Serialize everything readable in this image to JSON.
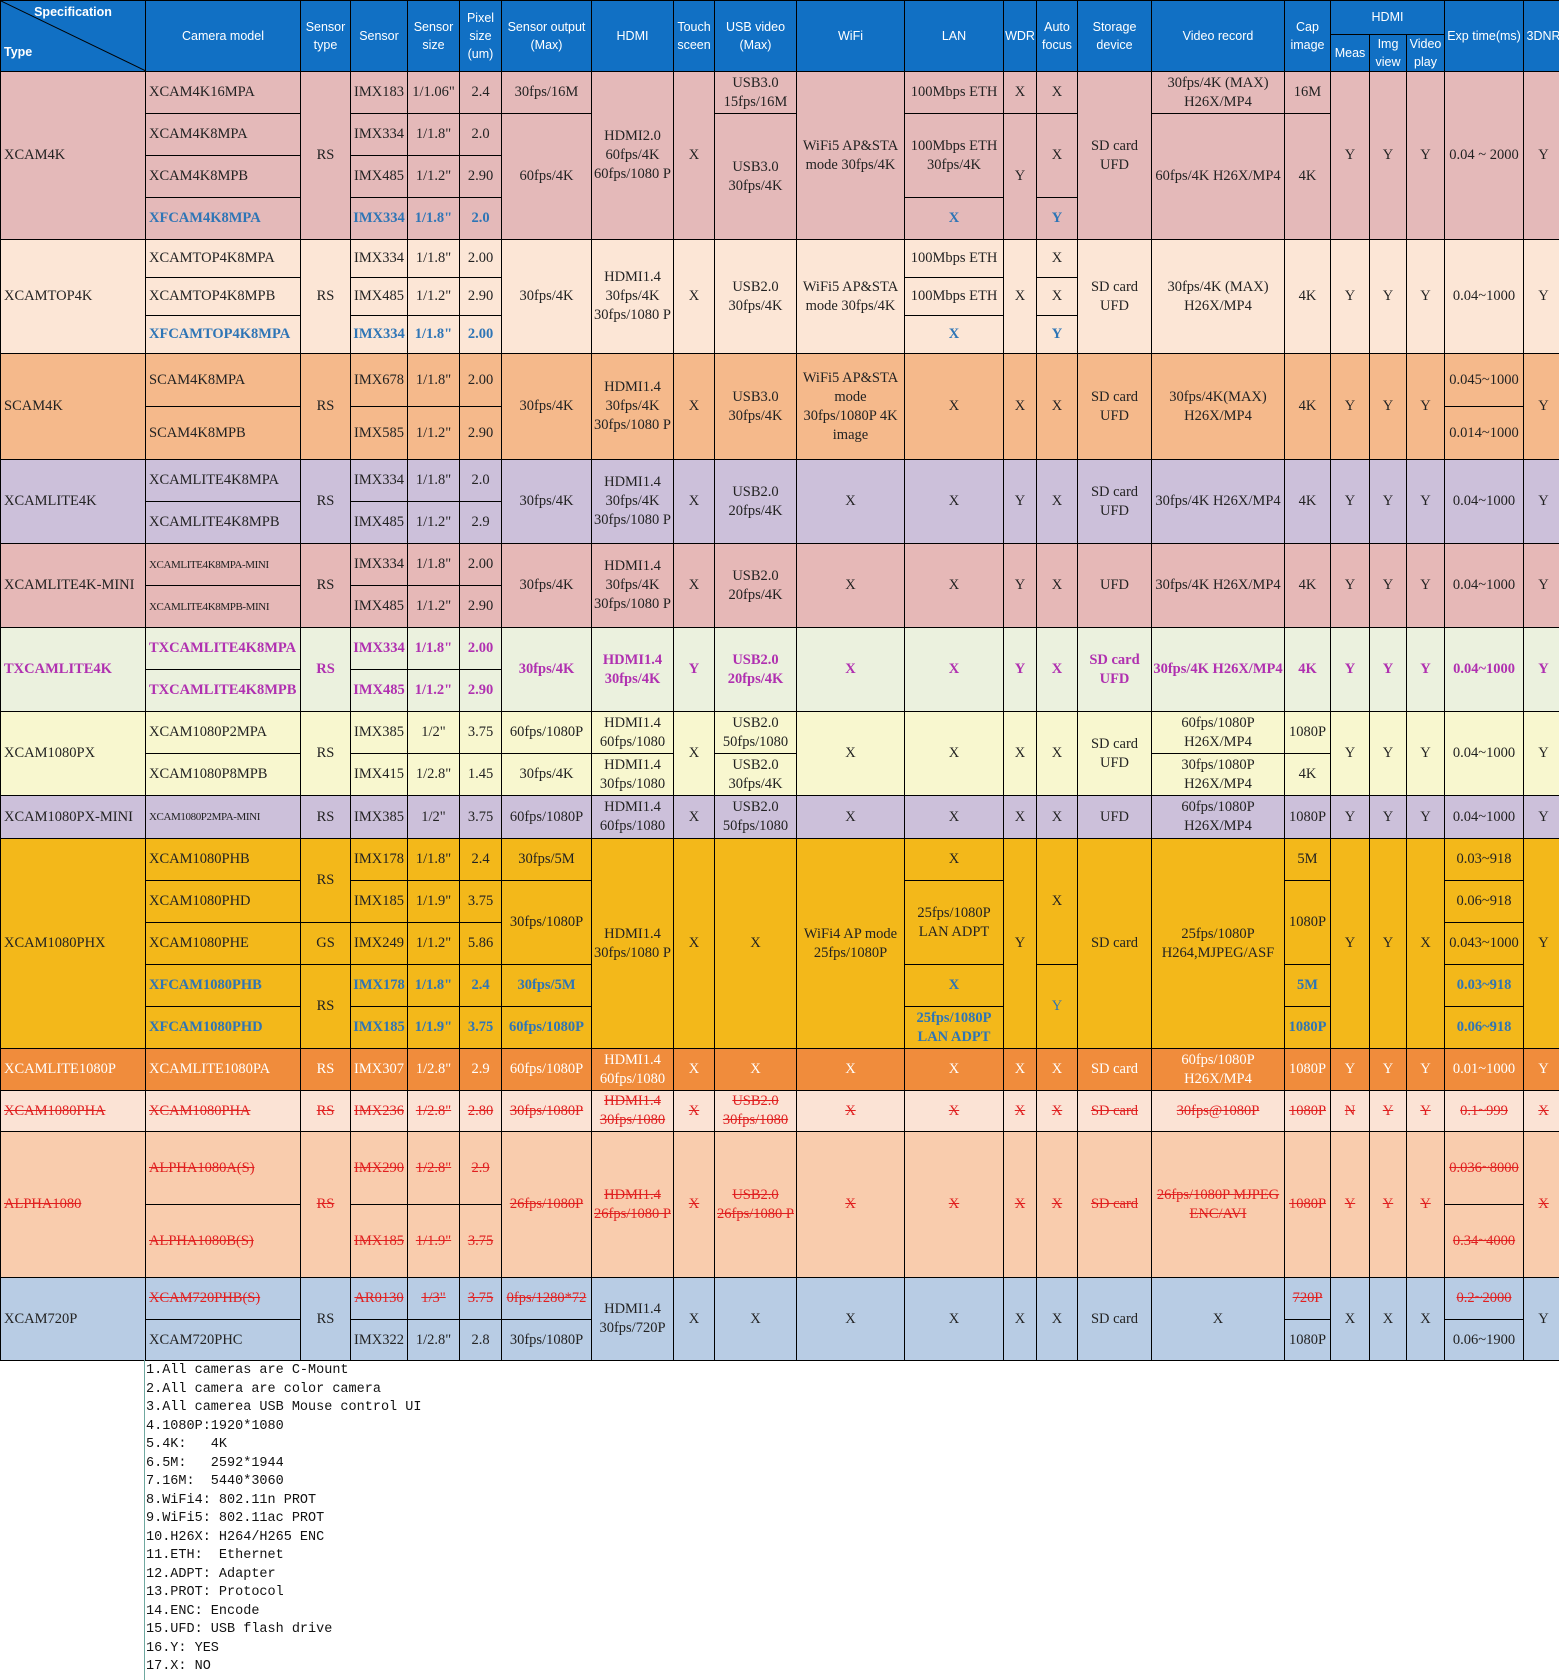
{
  "headers": {
    "specification": "Specification",
    "type": "Type",
    "camera_model": "Camera model",
    "sensor_type": "Sensor type",
    "sensor": "Sensor",
    "sensor_size": "Sensor size",
    "pixel_size": "Pixel size (um)",
    "sensor_output": "Sensor output (Max)",
    "hdmi": "HDMI",
    "touch_screen": "Touch sceen",
    "usb_video": "USB video (Max)",
    "wifi": "WiFi",
    "lan": "LAN",
    "wdr": "WDR",
    "auto_focus": "Auto focus",
    "storage_device": "Storage device",
    "video_record": "Video record",
    "cap_image": "Cap image",
    "hdmi_group": "HDMI",
    "meas": "Meas",
    "img_view": "Img view",
    "video_play": "Video play",
    "exp_time": "Exp time(ms)",
    "dnr": "3DNR"
  },
  "rows": {
    "xcam4k": {
      "type": "XCAM4K",
      "m1": "XCAM4K16MPA",
      "m2": "XCAM4K8MPA",
      "m3": "XCAM4K8MPB",
      "m4": "XFCAM4K8MPA",
      "sensor_type": "RS",
      "s1": "IMX183",
      "s2": "IMX334",
      "s3": "IMX485",
      "s4": "IMX334",
      "z1": "1/1.06\"",
      "z2": "1/1.8\"",
      "z3": "1/1.2\"",
      "z4": "1/1.8\"",
      "p1": "2.4",
      "p2": "2.0",
      "p3": "2.90",
      "p4": "2.0",
      "o1": "30fps/16M",
      "o2": "60fps/4K",
      "hdmi": "HDMI2.0 60fps/4K 60fps/1080 P",
      "touch": "X",
      "u1": "USB3.0 15fps/16M",
      "u2": "USB3.0 30fps/4K",
      "wifi": "WiFi5 AP&STA mode 30fps/4K",
      "l1": "100Mbps ETH",
      "l2": "100Mbps ETH 30fps/4K",
      "l3": "X",
      "w1": "X",
      "w2": "Y",
      "a1": "X",
      "a2": "X",
      "a3": "Y",
      "storage": "SD card UFD",
      "v1": "30fps/4K (MAX) H26X/MP4",
      "v2": "60fps/4K H26X/MP4",
      "c1": "16M",
      "c2": "4K",
      "meas": "Y",
      "img": "Y",
      "play": "Y",
      "exp": "0.04 ~ 2000",
      "dnr": "Y"
    },
    "xcamtop4k": {
      "type": "XCAMTOP4K",
      "m1": "XCAMTOP4K8MPA",
      "m2": "XCAMTOP4K8MPB",
      "m3": "XFCAMTOP4K8MPA",
      "sensor_type": "RS",
      "s1": "IMX334",
      "s2": "IMX485",
      "s3": "IMX334",
      "z1": "1/1.8\"",
      "z2": "1/1.2\"",
      "z3": "1/1.8\"",
      "p1": "2.00",
      "p2": "2.90",
      "p3": "2.00",
      "out": "30fps/4K",
      "hdmi": "HDMI1.4 30fps/4K 30fps/1080 P",
      "touch": "X",
      "usb": "USB2.0 30fps/4K",
      "wifi": "WiFi5 AP&STA mode 30fps/4K",
      "l1": "100Mbps ETH",
      "l2": "100Mbps ETH",
      "l3": "X",
      "wdr": "X",
      "a1": "X",
      "a2": "X",
      "a3": "Y",
      "storage": "SD card UFD",
      "video": "30fps/4K (MAX) H26X/MP4",
      "cap": "4K",
      "meas": "Y",
      "img": "Y",
      "play": "Y",
      "exp": "0.04~1000",
      "dnr": "Y"
    },
    "scam4k": {
      "type": "SCAM4K",
      "m1": "SCAM4K8MPA",
      "m2": "SCAM4K8MPB",
      "sensor_type": "RS",
      "s1": "IMX678",
      "s2": "IMX585",
      "z1": "1/1.8\"",
      "z2": "1/1.2\"",
      "p1": "2.00",
      "p2": "2.90",
      "out": "30fps/4K",
      "hdmi": "HDMI1.4 30fps/4K 30fps/1080 P",
      "touch": "X",
      "usb": "USB3.0 30fps/4K",
      "wifi": "WiFi5 AP&STA mode 30fps/1080P 4K image",
      "lan": "X",
      "wdr": "X",
      "af": "X",
      "storage": "SD card UFD",
      "video": "30fps/4K(MAX) H26X/MP4",
      "cap": "4K",
      "meas": "Y",
      "img": "Y",
      "play": "Y",
      "e1": "0.045~1000",
      "e2": "0.014~1000",
      "dnr": "Y"
    },
    "xcamlite4k": {
      "type": "XCAMLITE4K",
      "m1": "XCAMLITE4K8MPA",
      "m2": "XCAMLITE4K8MPB",
      "sensor_type": "RS",
      "s1": "IMX334",
      "s2": "IMX485",
      "z1": "1/1.8\"",
      "z2": "1/1.2\"",
      "p1": "2.0",
      "p2": "2.9",
      "out": "30fps/4K",
      "hdmi": "HDMI1.4 30fps/4K 30fps/1080 P",
      "touch": "X",
      "usb": "USB2.0 20fps/4K",
      "wifi": "X",
      "lan": "X",
      "wdr": "Y",
      "af": "X",
      "storage": "SD card UFD",
      "video": "30fps/4K H26X/MP4",
      "cap": "4K",
      "meas": "Y",
      "img": "Y",
      "play": "Y",
      "exp": "0.04~1000",
      "dnr": "Y"
    },
    "xcamlite4kmini": {
      "type": "XCAMLITE4K-MINI",
      "m1": "XCAMLITE4K8MPA-MINI",
      "m2": "XCAMLITE4K8MPB-MINI",
      "sensor_type": "RS",
      "s1": "IMX334",
      "s2": "IMX485",
      "z1": "1/1.8\"",
      "z2": "1/1.2\"",
      "p1": "2.00",
      "p2": "2.90",
      "out": "30fps/4K",
      "hdmi": "HDMI1.4 30fps/4K 30fps/1080 P",
      "touch": "X",
      "usb": "USB2.0 20fps/4K",
      "wifi": "X",
      "lan": "X",
      "wdr": "Y",
      "af": "X",
      "storage": "UFD",
      "video": "30fps/4K H26X/MP4",
      "cap": "4K",
      "meas": "Y",
      "img": "Y",
      "play": "Y",
      "exp": "0.04~1000",
      "dnr": "Y"
    },
    "txcamlite4k": {
      "type": "TXCAMLITE4K",
      "m1": "TXCAMLITE4K8MPA",
      "m2": "TXCAMLITE4K8MPB",
      "sensor_type": "RS",
      "s1": "IMX334",
      "s2": "IMX485",
      "z1": "1/1.8\"",
      "z2": "1/1.2\"",
      "p1": "2.00",
      "p2": "2.90",
      "out": "30fps/4K",
      "hdmi": "HDMI1.4 30fps/4K",
      "touch": "Y",
      "usb": "USB2.0 20fps/4K",
      "wifi": "X",
      "lan": "X",
      "wdr": "Y",
      "af": "X",
      "storage": "SD card UFD",
      "video": "30fps/4K H26X/MP4",
      "cap": "4K",
      "meas": "Y",
      "img": "Y",
      "play": "Y",
      "exp": "0.04~1000",
      "dnr": "Y"
    },
    "xcam1080px": {
      "type": "XCAM1080PX",
      "m1": "XCAM1080P2MPA",
      "m2": "XCAM1080P8MPB",
      "sensor_type": "RS",
      "s1": "IMX385",
      "s2": "IMX415",
      "z1": "1/2\"",
      "z2": "1/2.8\"",
      "p1": "3.75",
      "p2": "1.45",
      "o1": "60fps/1080P",
      "o2": "30fps/4K",
      "h1": "HDMI1.4 60fps/1080",
      "h2": "HDMI1.4 30fps/1080",
      "touch": "X",
      "u1": "USB2.0 50fps/1080",
      "u2": "USB2.0 30fps/4K",
      "wifi": "X",
      "lan": "X",
      "wdr": "X",
      "af": "X",
      "storage": "SD card UFD",
      "v1": "60fps/1080P H26X/MP4",
      "v2": "30fps/1080P H26X/MP4",
      "c1": "1080P",
      "c2": "4K",
      "meas": "Y",
      "img": "Y",
      "play": "Y",
      "exp": "0.04~1000",
      "dnr": "Y"
    },
    "xcam1080pxmini": {
      "type": "XCAM1080PX-MINI",
      "m1": "XCAM1080P2MPA-MINI",
      "sensor_type": "RS",
      "s1": "IMX385",
      "z1": "1/2\"",
      "p1": "3.75",
      "out": "60fps/1080P",
      "hdmi": "HDMI1.4 60fps/1080",
      "touch": "X",
      "usb": "USB2.0 50fps/1080",
      "wifi": "X",
      "lan": "X",
      "wdr": "X",
      "af": "X",
      "storage": "UFD",
      "video": "60fps/1080P H26X/MP4",
      "cap": "1080P",
      "meas": "Y",
      "img": "Y",
      "play": "Y",
      "exp": "0.04~1000",
      "dnr": "Y"
    },
    "xcam1080phx": {
      "type": "XCAM1080PHX",
      "m1": "XCAM1080PHB",
      "m2": "XCAM1080PHD",
      "m3": "XCAM1080PHE",
      "m4": "XFCAM1080PHB",
      "m5": "XFCAM1080PHD",
      "st1": "RS",
      "st2": "GS",
      "st3": "RS",
      "s1": "IMX178",
      "s2": "IMX185",
      "s3": "IMX249",
      "s4": "IMX178",
      "s5": "IMX185",
      "z1": "1/1.8\"",
      "z2": "1/1.9\"",
      "z3": "1/1.2\"",
      "z4": "1/1.8\"",
      "z5": "1/1.9\"",
      "p1": "2.4",
      "p2": "3.75",
      "p3": "5.86",
      "p4": "2.4",
      "p5": "3.75",
      "o1": "30fps/5M",
      "o2": "30fps/1080P",
      "o4": "30fps/5M",
      "o5": "60fps/1080P",
      "hdmi": "HDMI1.4 30fps/1080 P",
      "touch": "X",
      "usb": "X",
      "wifi": "WiFi4 AP mode 25fps/1080P",
      "l1": "X",
      "l2": "25fps/1080P LAN ADPT",
      "l4": "X",
      "l5": "25fps/1080P LAN ADPT",
      "wdr": "Y",
      "a1": "X",
      "a2": "Y",
      "storage": "SD card",
      "video": "25fps/1080P H264,MJPEG/ASF",
      "c1": "5M",
      "c2": "1080P",
      "c4": "5M",
      "c5": "1080P",
      "meas": "Y",
      "img": "Y",
      "play": "X",
      "e1": "0.03~918",
      "e2": "0.06~918",
      "e3": "0.043~1000",
      "e4": "0.03~918",
      "e5": "0.06~918",
      "dnr": "Y"
    },
    "xcamlite1080p": {
      "type": "XCAMLITE1080P",
      "m1": "XCAMLITE1080PA",
      "sensor_type": "RS",
      "s1": "IMX307",
      "z1": "1/2.8\"",
      "p1": "2.9",
      "out": "60fps/1080P",
      "hdmi": "HDMI1.4 60fps/1080",
      "touch": "X",
      "usb": "X",
      "wifi": "X",
      "lan": "X",
      "wdr": "X",
      "af": "X",
      "storage": "SD card",
      "video": "60fps/1080P H26X/MP4",
      "cap": "1080P",
      "meas": "Y",
      "img": "Y",
      "play": "Y",
      "exp": "0.01~1000",
      "dnr": "Y"
    },
    "xcam1080pha": {
      "type": "XCAM1080PHA",
      "m1": "XCAM1080PHA",
      "sensor_type": "RS",
      "s1": "IMX236",
      "z1": "1/2.8\"",
      "p1": "2.80",
      "out": "30fps/1080P",
      "hdmi": "HDMI1.4 30fps/1080",
      "touch": "X",
      "usb": "USB2.0 30fps/1080",
      "wifi": "X",
      "lan": "X",
      "wdr": "X",
      "af": "X",
      "storage": "SD card",
      "video": "30fps@1080P",
      "cap": "1080P",
      "meas": "N",
      "img": "Y",
      "play": "Y",
      "exp": "0.1~999",
      "dnr": "X"
    },
    "alpha1080": {
      "type": "ALPHA1080",
      "m1": "ALPHA1080A(S)",
      "m2": "ALPHA1080B(S)",
      "sensor_type": "RS",
      "s1": "IMX290",
      "s2": "IMX185",
      "z1": "1/2.8\"",
      "z2": "1/1.9\"",
      "p1": "2.9",
      "p2": "3.75",
      "out": "26fps/1080P",
      "hdmi": "HDMI1.4 26fps/1080 P",
      "touch": "X",
      "usb": "USB2.0 26fps/1080 P",
      "wifi": "X",
      "lan": "X",
      "wdr": "X",
      "af": "X",
      "storage": "SD card",
      "video": "26fps/1080P MJPEG ENC/AVI",
      "cap": "1080P",
      "meas": "Y",
      "img": "Y",
      "play": "Y",
      "e1": "0.036~8000",
      "e2": "0.34~4000",
      "dnr": "X"
    },
    "xcam720p": {
      "type": "XCAM720P",
      "m1": "XCAM720PHB(S)",
      "m2": "XCAM720PHC",
      "sensor_type": "RS",
      "s1": "AR0130",
      "s2": "IMX322",
      "z1": "1/3\"",
      "z2": "1/2.8\"",
      "p1": "3.75",
      "p2": "2.8",
      "o1": "0fps/1280*72",
      "o2": "30fps/1080P",
      "hdmi": "HDMI1.4 30fps/720P",
      "touch": "X",
      "usb": "X",
      "wifi": "X",
      "lan": "X",
      "wdr": "X",
      "af": "X",
      "storage": "SD card",
      "video": "X",
      "c1": "720P",
      "c2": "1080P",
      "meas": "X",
      "img": "X",
      "play": "X",
      "e1": "0.2~2000",
      "e2": "0.06~1900",
      "dnr": "Y"
    }
  },
  "notes": [
    "1.All cameras are C-Mount",
    "2.All camera are color camera",
    "3.All camerea USB Mouse control UI",
    "4.1080P:1920*1080",
    "5.4K:   4K",
    "6.5M:   2592*1944",
    "7.16M:  5440*3060",
    "8.WiFi4: 802.11n PROT",
    "9.WiFi5: 802.11ac PROT",
    "10.H26X: H264/H265 ENC",
    "11.ETH:  Ethernet",
    "12.ADPT: Adapter",
    "13.PROT: Protocol",
    "14.ENC: Encode",
    "15.UFD: USB flash drive",
    "16.Y: YES",
    "17.X: NO"
  ]
}
